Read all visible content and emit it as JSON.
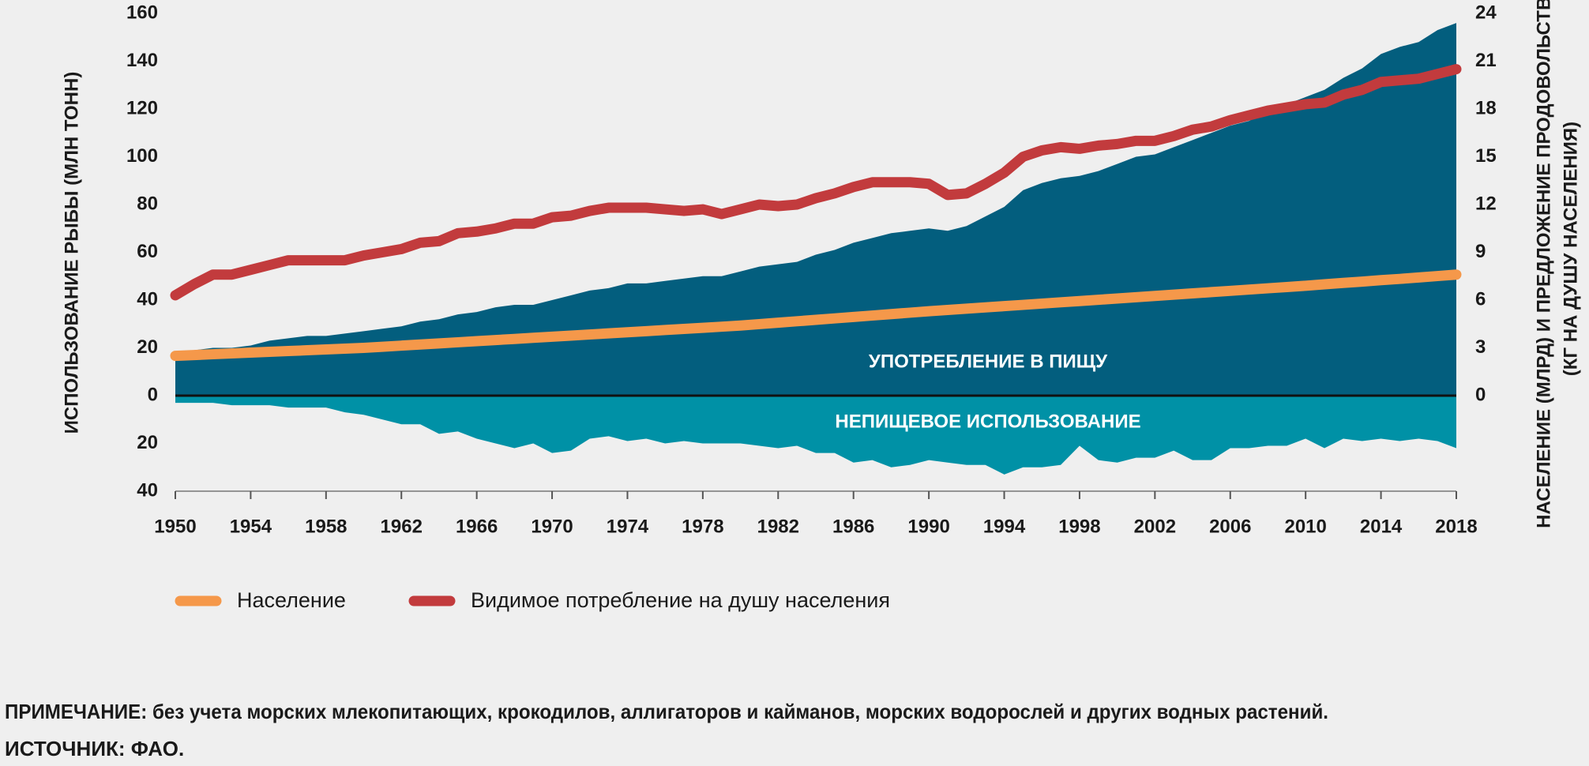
{
  "chart_data": {
    "type": "area",
    "ylabel": "ИСПОЛЬЗОВАНИЕ РЫБЫ (МЛН ТОНН)",
    "y2label": [
      "НАСЕЛЕНИЕ (МЛРД) И ПРЕДЛОЖЕНИЕ ПРОДОВОЛЬСТВИЯ",
      "(КГ НА ДУШУ НАСЕЛЕНИЯ)"
    ],
    "x": [
      1950,
      1951,
      1952,
      1953,
      1954,
      1955,
      1956,
      1957,
      1958,
      1959,
      1960,
      1961,
      1962,
      1963,
      1964,
      1965,
      1966,
      1967,
      1968,
      1969,
      1970,
      1971,
      1972,
      1973,
      1974,
      1975,
      1976,
      1977,
      1978,
      1979,
      1980,
      1981,
      1982,
      1983,
      1984,
      1985,
      1986,
      1987,
      1988,
      1989,
      1990,
      1991,
      1992,
      1993,
      1994,
      1995,
      1996,
      1997,
      1998,
      1999,
      2000,
      2001,
      2002,
      2003,
      2004,
      2005,
      2006,
      2007,
      2008,
      2009,
      2010,
      2011,
      2012,
      2013,
      2014,
      2015,
      2016,
      2017,
      2018
    ],
    "xlim": [
      1950,
      2018
    ],
    "xticks": [
      1950,
      1954,
      1958,
      1962,
      1966,
      1970,
      1974,
      1978,
      1982,
      1986,
      1990,
      1994,
      1998,
      2002,
      2006,
      2010,
      2014,
      2018
    ],
    "ylim": [
      -40,
      160
    ],
    "yticks": [
      {
        "value": -40,
        "label": "40"
      },
      {
        "value": -20,
        "label": "20"
      },
      0,
      20,
      40,
      60,
      80,
      100,
      120,
      140,
      160
    ],
    "y2lim": [
      -6,
      24
    ],
    "y2ticks": [
      0,
      3,
      6,
      9,
      12,
      15,
      18,
      21,
      24
    ],
    "series": [
      {
        "name": "УПОТРЕБЛЕНИЕ В ПИЩУ",
        "type": "area",
        "color": "#035e7e",
        "values": [
          18,
          19,
          20,
          20,
          21,
          23,
          24,
          25,
          25,
          26,
          27,
          28,
          29,
          31,
          32,
          34,
          35,
          37,
          38,
          38,
          40,
          42,
          44,
          45,
          47,
          47,
          48,
          49,
          50,
          50,
          52,
          54,
          55,
          56,
          59,
          61,
          64,
          66,
          68,
          69,
          70,
          69,
          71,
          75,
          79,
          86,
          89,
          91,
          92,
          94,
          97,
          100,
          101,
          104,
          107,
          110,
          113,
          115,
          119,
          122,
          125,
          128,
          133,
          137,
          143,
          146,
          148,
          153,
          156
        ]
      },
      {
        "name": "НЕПИЩЕВОЕ ИСПОЛЬЗОВАНИЕ",
        "type": "area",
        "color": "#0091a6",
        "values": [
          -3,
          -3,
          -3,
          -4,
          -4,
          -4,
          -5,
          -5,
          -5,
          -7,
          -8,
          -10,
          -12,
          -12,
          -16,
          -15,
          -18,
          -20,
          -22,
          -20,
          -24,
          -23,
          -18,
          -17,
          -19,
          -18,
          -20,
          -19,
          -20,
          -20,
          -20,
          -21,
          -22,
          -21,
          -24,
          -24,
          -28,
          -27,
          -30,
          -29,
          -27,
          -28,
          -29,
          -29,
          -33,
          -30,
          -30,
          -29,
          -21,
          -27,
          -28,
          -26,
          -26,
          -23,
          -27,
          -27,
          -22,
          -22,
          -21,
          -21,
          -18,
          -22,
          -18,
          -19,
          -18,
          -19,
          -18,
          -19,
          -22
        ]
      },
      {
        "name": "Население",
        "type": "line",
        "axis": "y2",
        "color": "#f5984a",
        "values": [
          2.5,
          2.55,
          2.6,
          2.65,
          2.7,
          2.75,
          2.8,
          2.85,
          2.9,
          2.95,
          3.0,
          3.07,
          3.14,
          3.21,
          3.28,
          3.35,
          3.42,
          3.49,
          3.56,
          3.63,
          3.7,
          3.77,
          3.84,
          3.91,
          3.98,
          4.05,
          4.12,
          4.19,
          4.26,
          4.33,
          4.4,
          4.49,
          4.58,
          4.67,
          4.76,
          4.85,
          4.94,
          5.03,
          5.12,
          5.21,
          5.3,
          5.38,
          5.46,
          5.54,
          5.62,
          5.7,
          5.78,
          5.86,
          5.94,
          6.02,
          6.1,
          6.18,
          6.26,
          6.34,
          6.42,
          6.5,
          6.58,
          6.66,
          6.74,
          6.82,
          6.9,
          6.99,
          7.08,
          7.16,
          7.25,
          7.33,
          7.42,
          7.51,
          7.6
        ]
      },
      {
        "name": "Видимое потребление на душу населения",
        "type": "line",
        "axis": "y2",
        "color": "#c23b3d",
        "values": [
          6.3,
          7.0,
          7.6,
          7.6,
          7.9,
          8.2,
          8.5,
          8.5,
          8.5,
          8.5,
          8.8,
          9.0,
          9.2,
          9.6,
          9.7,
          10.2,
          10.3,
          10.5,
          10.8,
          10.8,
          11.2,
          11.3,
          11.6,
          11.8,
          11.8,
          11.8,
          11.7,
          11.6,
          11.7,
          11.4,
          11.7,
          12.0,
          11.9,
          12.0,
          12.4,
          12.7,
          13.1,
          13.4,
          13.4,
          13.4,
          13.3,
          12.6,
          12.7,
          13.3,
          14.0,
          15.0,
          15.4,
          15.6,
          15.5,
          15.7,
          15.8,
          16.0,
          16.0,
          16.3,
          16.7,
          16.9,
          17.3,
          17.6,
          17.9,
          18.1,
          18.3,
          18.4,
          18.9,
          19.2,
          19.7,
          19.8,
          19.9,
          20.2,
          20.5
        ]
      }
    ],
    "notes": [
      "ПРИМЕЧАНИЕ: без учета морских млекопитающих, крокодилов, аллигаторов и кайманов, морских водорослей и других водных растений.",
      "ИСТОЧНИК: ФАО."
    ]
  }
}
